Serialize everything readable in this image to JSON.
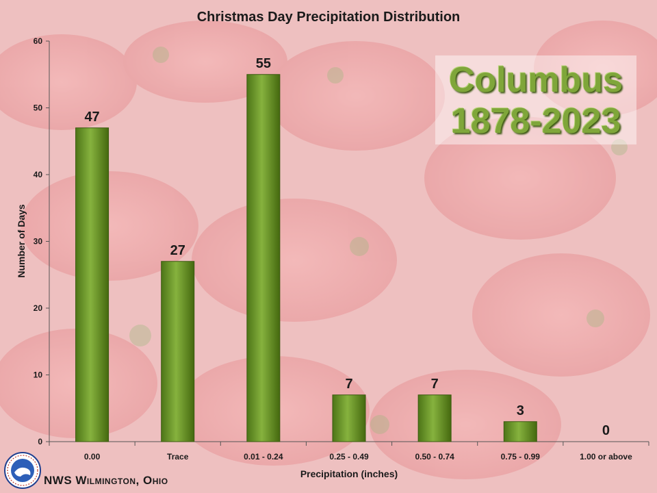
{
  "header": {
    "place": "Columbus",
    "period": "1878-2023"
  },
  "footer": {
    "credit": "NWS Wilmington, Ohio"
  },
  "colors": {
    "bar": "#6e9a2c",
    "bar_dark": "#3f6112",
    "bar_light": "#9fc45a",
    "axis": "#555555",
    "place_text": "#7fa63a"
  },
  "chart_data": {
    "type": "bar",
    "title": "Christmas Day Precipitation Distribution",
    "xlabel": "Precipitation (inches)",
    "ylabel": "Number of Days",
    "categories": [
      "0.00",
      "Trace",
      "0.01 - 0.24",
      "0.25 - 0.49",
      "0.50 - 0.74",
      "0.75 - 0.99",
      "1.00 or above"
    ],
    "values": [
      47,
      27,
      55,
      7,
      7,
      3,
      0
    ],
    "ylim": [
      0,
      60
    ],
    "yticks": [
      0,
      10,
      20,
      30,
      40,
      50,
      60
    ],
    "grid": false,
    "data_labels": true
  }
}
